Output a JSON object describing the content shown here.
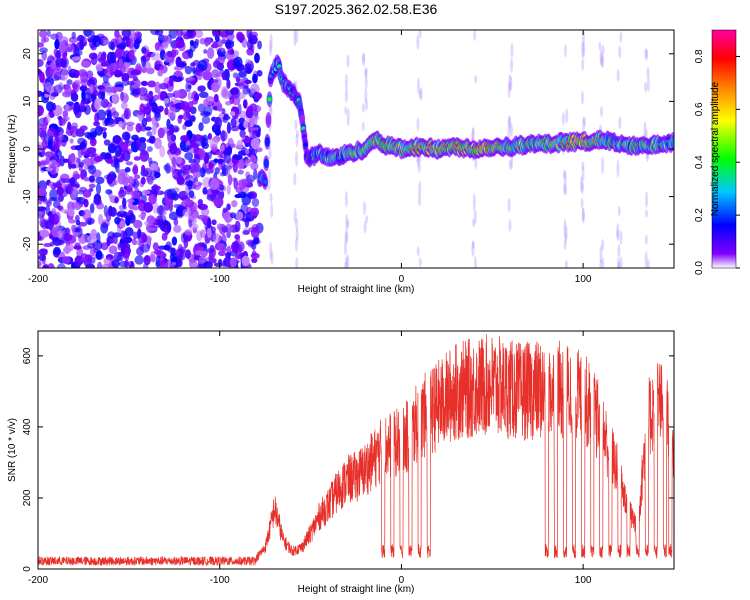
{
  "chart_data": [
    {
      "type": "heatmap",
      "title": "S197.2025.362.02.58.E36",
      "xlabel": "Height of straight line (km)",
      "ylabel": "Frequency (Hz)",
      "xlim": [
        -200,
        150
      ],
      "ylim": [
        -25,
        25
      ],
      "x_ticks": [
        -200,
        -100,
        0,
        100
      ],
      "x_tick_labels": [
        "-200",
        "-100",
        "0",
        "100"
      ],
      "y_ticks": [
        -20,
        -10,
        0,
        10,
        20
      ],
      "y_tick_labels": [
        "-20",
        "-10",
        "0",
        "10",
        "20"
      ],
      "colorbar": {
        "label": "Normalized spectral amplitude",
        "range": [
          0,
          0.9
        ],
        "ticks": [
          0,
          0.2,
          0.4,
          0.6,
          0.8
        ],
        "tick_labels": [
          "0.0",
          "0.2",
          "0.4",
          "0.6",
          "0.8"
        ],
        "colors": [
          "#ffffff",
          "#7f00ff",
          "#0000ff",
          "#00ffff",
          "#00ff00",
          "#ffff00",
          "#ff8000",
          "#ff0000",
          "#ff00ff"
        ]
      },
      "noise_region_km": [
        -200,
        -78
      ],
      "signal_trace": {
        "x": [
          -78,
          -75,
          -72,
          -68,
          -65,
          -60,
          -56,
          -52,
          -45,
          -38,
          -30,
          -20,
          -15,
          -10,
          0,
          10,
          20,
          30,
          40,
          50,
          60,
          70,
          80,
          90,
          100,
          110,
          120,
          130,
          140,
          150
        ],
        "freq": [
          -6,
          -7,
          15,
          18,
          14,
          12,
          10,
          -2,
          -1,
          -2,
          -1,
          0,
          2,
          1,
          0,
          0.5,
          0,
          0.5,
          0,
          0.5,
          0.5,
          1,
          1,
          1.5,
          1.5,
          2,
          1,
          0.5,
          1,
          1.5
        ],
        "amplitude": [
          0.45,
          0.35,
          0.3,
          0.5,
          0.35,
          0.4,
          0.3,
          0.35,
          0.45,
          0.5,
          0.55,
          0.6,
          0.7,
          0.6,
          0.65,
          0.7,
          0.75,
          0.8,
          0.8,
          0.75,
          0.65,
          0.6,
          0.65,
          0.7,
          0.85,
          0.65,
          0.5,
          0.6,
          0.55,
          0.45
        ]
      }
    },
    {
      "type": "line",
      "xlabel": "Height of straight line (km)",
      "ylabel": "SNR (10 * v/v)",
      "xlim": [
        -200,
        150
      ],
      "ylim": [
        0,
        670
      ],
      "x_ticks": [
        -200,
        -100,
        0,
        100
      ],
      "x_tick_labels": [
        "-200",
        "-100",
        "0",
        "100"
      ],
      "y_ticks": [
        0,
        200,
        400,
        600
      ],
      "y_tick_labels": [
        "0",
        "200",
        "400",
        "600"
      ],
      "color": "#e8302a",
      "series": [
        {
          "name": "SNR",
          "x": [
            -200,
            -190,
            -180,
            -170,
            -160,
            -150,
            -140,
            -130,
            -120,
            -110,
            -100,
            -90,
            -80,
            -75,
            -72,
            -70,
            -68,
            -65,
            -60,
            -55,
            -50,
            -45,
            -40,
            -35,
            -30,
            -25,
            -20,
            -15,
            -10,
            -5,
            0,
            5,
            10,
            15,
            20,
            25,
            30,
            35,
            40,
            45,
            50,
            55,
            60,
            65,
            70,
            75,
            80,
            85,
            90,
            95,
            100,
            105,
            110,
            115,
            120,
            125,
            130,
            135,
            140,
            145,
            150
          ],
          "y": [
            25,
            25,
            24,
            25,
            25,
            26,
            25,
            25,
            24,
            25,
            25,
            24,
            30,
            60,
            120,
            170,
            140,
            80,
            50,
            60,
            100,
            150,
            180,
            220,
            250,
            260,
            280,
            310,
            340,
            350,
            360,
            380,
            420,
            440,
            460,
            480,
            500,
            505,
            510,
            515,
            520,
            510,
            505,
            500,
            500,
            505,
            500,
            500,
            505,
            490,
            480,
            450,
            400,
            330,
            260,
            160,
            120,
            400,
            480,
            440,
            350
          ]
        }
      ],
      "dropouts_km": [
        -10,
        -5,
        0,
        5,
        10,
        15,
        80,
        85,
        90,
        95,
        100,
        105,
        110,
        115,
        120,
        125,
        130,
        135,
        140,
        145,
        148
      ]
    }
  ]
}
